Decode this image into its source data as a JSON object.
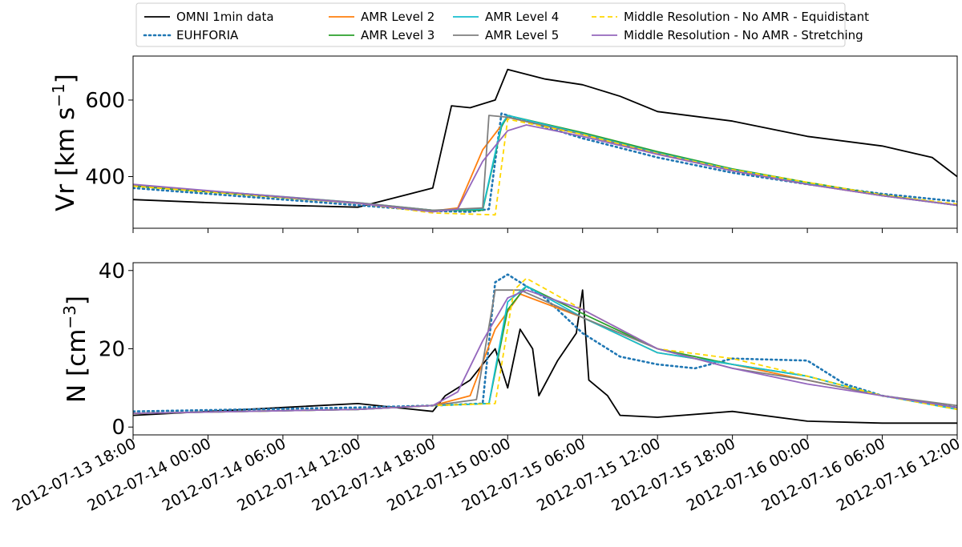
{
  "chart_data": {
    "type": "line",
    "legend": {
      "placement": "top-center",
      "entries": [
        {
          "name": "OMNI 1min data",
          "color": "#000000",
          "style": "solid"
        },
        {
          "name": "EUHFORIA",
          "color": "#1f77b4",
          "style": "dotted"
        },
        {
          "name": "AMR Level 2",
          "color": "#ff7f0e",
          "style": "solid"
        },
        {
          "name": "AMR Level 3",
          "color": "#2ca02c",
          "style": "solid"
        },
        {
          "name": "AMR Level 4",
          "color": "#17becf",
          "style": "solid"
        },
        {
          "name": "AMR Level 5",
          "color": "#7f7f7f",
          "style": "solid"
        },
        {
          "name": "Middle Resolution - No AMR - Equidistant",
          "color": "#ffd700",
          "style": "dashed"
        },
        {
          "name": "Middle Resolution - No AMR - Stretching",
          "color": "#9467bd",
          "style": "solid"
        }
      ]
    },
    "x_axis": {
      "type": "time",
      "range": [
        "2012-07-13 18:00",
        "2012-07-16 12:00"
      ],
      "tick_labels": [
        "2012-07-13 18:00",
        "2012-07-14 00:00",
        "2012-07-14 06:00",
        "2012-07-14 12:00",
        "2012-07-14 18:00",
        "2012-07-15 00:00",
        "2012-07-15 06:00",
        "2012-07-15 12:00",
        "2012-07-15 18:00",
        "2012-07-16 00:00",
        "2012-07-16 06:00",
        "2012-07-16 12:00"
      ]
    },
    "panels": [
      {
        "ylabel_main": "Vr [km s",
        "ylabel_sup": "−1",
        "ylabel_end": "]",
        "ylim": [
          265,
          715
        ],
        "yticks": [
          400,
          600
        ],
        "grid": false,
        "series": [
          {
            "name": "OMNI 1min data",
            "x": [
              "2012-07-13 18:00",
              "2012-07-14 00:00",
              "2012-07-14 06:00",
              "2012-07-14 12:00",
              "2012-07-14 15:00",
              "2012-07-14 18:00",
              "2012-07-14 19:30",
              "2012-07-14 21:00",
              "2012-07-14 23:00",
              "2012-07-15 00:00",
              "2012-07-15 03:00",
              "2012-07-15 06:00",
              "2012-07-15 09:00",
              "2012-07-15 12:00",
              "2012-07-15 18:00",
              "2012-07-16 00:00",
              "2012-07-16 06:00",
              "2012-07-16 10:00",
              "2012-07-16 12:00"
            ],
            "y": [
              340,
              332,
              325,
              320,
              345,
              370,
              585,
              580,
              600,
              680,
              655,
              640,
              610,
              570,
              545,
              505,
              480,
              450,
              400
            ]
          },
          {
            "name": "EUHFORIA",
            "x": [
              "2012-07-13 18:00",
              "2012-07-14 12:00",
              "2012-07-14 18:00",
              "2012-07-14 21:00",
              "2012-07-14 22:30",
              "2012-07-14 23:30",
              "2012-07-15 06:00",
              "2012-07-15 12:00",
              "2012-07-15 18:00",
              "2012-07-16 00:00",
              "2012-07-16 06:00",
              "2012-07-16 12:00"
            ],
            "y": [
              370,
              325,
              310,
              308,
              315,
              565,
              500,
              450,
              410,
              380,
              355,
              335
            ]
          },
          {
            "name": "AMR Level 2",
            "x": [
              "2012-07-13 18:00",
              "2012-07-14 12:00",
              "2012-07-14 18:00",
              "2012-07-14 20:00",
              "2012-07-14 22:00",
              "2012-07-15 00:00",
              "2012-07-15 06:00",
              "2012-07-15 12:00",
              "2012-07-15 18:00",
              "2012-07-16 00:00",
              "2012-07-16 06:00",
              "2012-07-16 12:00"
            ],
            "y": [
              375,
              330,
              310,
              318,
              470,
              555,
              510,
              460,
              415,
              380,
              350,
              325
            ]
          },
          {
            "name": "AMR Level 3",
            "x": [
              "2012-07-13 18:00",
              "2012-07-14 12:00",
              "2012-07-14 18:00",
              "2012-07-14 22:00",
              "2012-07-14 23:30",
              "2012-07-15 00:00",
              "2012-07-15 06:00",
              "2012-07-15 12:00",
              "2012-07-15 18:00",
              "2012-07-16 00:00",
              "2012-07-16 06:00",
              "2012-07-16 12:00"
            ],
            "y": [
              375,
              330,
              312,
              312,
              530,
              560,
              515,
              465,
              420,
              385,
              352,
              325
            ]
          },
          {
            "name": "AMR Level 4",
            "x": [
              "2012-07-13 18:00",
              "2012-07-14 12:00",
              "2012-07-14 18:00",
              "2012-07-14 22:00",
              "2012-07-14 23:30",
              "2012-07-15 00:00",
              "2012-07-15 06:00",
              "2012-07-15 12:00",
              "2012-07-15 18:00",
              "2012-07-16 00:00",
              "2012-07-16 06:00",
              "2012-07-16 12:00"
            ],
            "y": [
              378,
              332,
              312,
              315,
              535,
              560,
              512,
              462,
              418,
              382,
              350,
              325
            ]
          },
          {
            "name": "AMR Level 5",
            "x": [
              "2012-07-13 18:00",
              "2012-07-14 12:00",
              "2012-07-14 18:00",
              "2012-07-14 22:00",
              "2012-07-14 22:30",
              "2012-07-15 00:00",
              "2012-07-15 06:00",
              "2012-07-15 12:00",
              "2012-07-15 18:00",
              "2012-07-16 00:00",
              "2012-07-16 06:00",
              "2012-07-16 12:00"
            ],
            "y": [
              378,
              332,
              312,
              318,
              560,
              555,
              510,
              460,
              416,
              380,
              350,
              325
            ]
          },
          {
            "name": "Middle Resolution - No AMR - Equidistant",
            "x": [
              "2012-07-13 18:00",
              "2012-07-14 12:00",
              "2012-07-14 18:00",
              "2012-07-14 23:00",
              "2012-07-15 00:00",
              "2012-07-15 06:00",
              "2012-07-15 12:00",
              "2012-07-15 18:00",
              "2012-07-16 00:00",
              "2012-07-16 06:00",
              "2012-07-16 12:00"
            ],
            "y": [
              375,
              330,
              305,
              300,
              550,
              510,
              460,
              418,
              385,
              352,
              328
            ]
          },
          {
            "name": "Middle Resolution - No AMR - Stretching",
            "x": [
              "2012-07-13 18:00",
              "2012-07-14 12:00",
              "2012-07-14 18:00",
              "2012-07-14 20:00",
              "2012-07-14 22:00",
              "2012-07-15 00:00",
              "2012-07-15 01:30",
              "2012-07-15 06:00",
              "2012-07-15 12:00",
              "2012-07-15 18:00",
              "2012-07-16 00:00",
              "2012-07-16 06:00",
              "2012-07-16 12:00"
            ],
            "y": [
              380,
              330,
              308,
              315,
              440,
              520,
              535,
              505,
              458,
              415,
              380,
              350,
              325
            ]
          }
        ]
      },
      {
        "ylabel_main": "N [cm",
        "ylabel_sup": "−3",
        "ylabel_end": "]",
        "ylim": [
          -2,
          42
        ],
        "yticks": [
          0,
          20,
          40
        ],
        "grid": false,
        "series": [
          {
            "name": "OMNI 1min data",
            "x": [
              "2012-07-13 18:00",
              "2012-07-14 00:00",
              "2012-07-14 06:00",
              "2012-07-14 12:00",
              "2012-07-14 15:00",
              "2012-07-14 18:00",
              "2012-07-14 19:00",
              "2012-07-14 21:00",
              "2012-07-14 23:00",
              "2012-07-15 00:00",
              "2012-07-15 01:00",
              "2012-07-15 02:00",
              "2012-07-15 02:30",
              "2012-07-15 04:00",
              "2012-07-15 05:30",
              "2012-07-15 06:00",
              "2012-07-15 06:30",
              "2012-07-15 08:00",
              "2012-07-15 09:00",
              "2012-07-15 12:00",
              "2012-07-15 18:00",
              "2012-07-16 00:00",
              "2012-07-16 06:00",
              "2012-07-16 12:00"
            ],
            "y": [
              3,
              4,
              5,
              6,
              5,
              4,
              8,
              12,
              20,
              10,
              25,
              20,
              8,
              17,
              24,
              35,
              12,
              8,
              3,
              2.5,
              4,
              1.5,
              1,
              1
            ]
          },
          {
            "name": "EUHFORIA",
            "x": [
              "2012-07-13 18:00",
              "2012-07-14 12:00",
              "2012-07-14 18:00",
              "2012-07-14 22:00",
              "2012-07-14 23:00",
              "2012-07-15 00:00",
              "2012-07-15 03:00",
              "2012-07-15 06:00",
              "2012-07-15 09:00",
              "2012-07-15 12:00",
              "2012-07-15 15:00",
              "2012-07-15 18:00",
              "2012-07-16 00:00",
              "2012-07-16 03:00",
              "2012-07-16 06:00",
              "2012-07-16 12:00"
            ],
            "y": [
              4,
              5,
              5.5,
              6,
              37,
              39,
              33,
              24,
              18,
              16,
              15,
              17.5,
              17,
              11,
              8,
              5
            ]
          },
          {
            "name": "AMR Level 2",
            "x": [
              "2012-07-13 18:00",
              "2012-07-14 12:00",
              "2012-07-14 18:00",
              "2012-07-14 21:00",
              "2012-07-14 23:00",
              "2012-07-15 01:00",
              "2012-07-15 06:00",
              "2012-07-15 12:00",
              "2012-07-15 18:00",
              "2012-07-16 00:00",
              "2012-07-16 06:00",
              "2012-07-16 12:00"
            ],
            "y": [
              3.5,
              4.5,
              5.5,
              8,
              25,
              34,
              28,
              19,
              16,
              12,
              8,
              5
            ]
          },
          {
            "name": "AMR Level 3",
            "x": [
              "2012-07-13 18:00",
              "2012-07-14 12:00",
              "2012-07-14 18:00",
              "2012-07-14 22:30",
              "2012-07-15 00:00",
              "2012-07-15 01:30",
              "2012-07-15 06:00",
              "2012-07-15 12:00",
              "2012-07-15 18:00",
              "2012-07-16 00:00",
              "2012-07-16 06:00",
              "2012-07-16 12:00"
            ],
            "y": [
              3.5,
              4.5,
              5.5,
              6,
              30,
              36,
              29,
              20,
              16,
              13,
              8,
              5
            ]
          },
          {
            "name": "AMR Level 4",
            "x": [
              "2012-07-13 18:00",
              "2012-07-14 12:00",
              "2012-07-14 18:00",
              "2012-07-14 22:30",
              "2012-07-15 00:00",
              "2012-07-15 01:30",
              "2012-07-15 06:00",
              "2012-07-15 12:00",
              "2012-07-15 18:00",
              "2012-07-16 00:00",
              "2012-07-16 06:00",
              "2012-07-16 12:00"
            ],
            "y": [
              3.5,
              4.5,
              5.5,
              6,
              32,
              36,
              28,
              19,
              16,
              13,
              8,
              4.5
            ]
          },
          {
            "name": "AMR Level 5",
            "x": [
              "2012-07-13 18:00",
              "2012-07-14 12:00",
              "2012-07-14 18:00",
              "2012-07-14 21:30",
              "2012-07-14 23:00",
              "2012-07-15 01:00",
              "2012-07-15 06:00",
              "2012-07-15 12:00",
              "2012-07-15 18:00",
              "2012-07-16 00:00",
              "2012-07-16 06:00",
              "2012-07-16 12:00"
            ],
            "y": [
              3.5,
              4.5,
              5.5,
              7,
              35,
              35,
              28,
              20,
              15,
              12,
              8,
              5.5
            ]
          },
          {
            "name": "Middle Resolution - No AMR - Equidistant",
            "x": [
              "2012-07-13 18:00",
              "2012-07-14 12:00",
              "2012-07-14 18:00",
              "2012-07-14 23:00",
              "2012-07-15 00:30",
              "2012-07-15 01:30",
              "2012-07-15 06:00",
              "2012-07-15 12:00",
              "2012-07-15 18:00",
              "2012-07-16 00:00",
              "2012-07-16 06:00",
              "2012-07-16 12:00"
            ],
            "y": [
              3.5,
              4.5,
              5.5,
              6,
              35,
              38,
              30,
              20,
              17.5,
              13,
              8,
              4.5
            ]
          },
          {
            "name": "Middle Resolution - No AMR - Stretching",
            "x": [
              "2012-07-13 18:00",
              "2012-07-14 12:00",
              "2012-07-14 18:00",
              "2012-07-14 20:00",
              "2012-07-14 22:00",
              "2012-07-15 00:00",
              "2012-07-15 01:30",
              "2012-07-15 06:00",
              "2012-07-15 12:00",
              "2012-07-15 18:00",
              "2012-07-16 00:00",
              "2012-07-16 06:00",
              "2012-07-16 12:00"
            ],
            "y": [
              3.5,
              4.5,
              5.5,
              9,
              22,
              33,
              35,
              30,
              20,
              15,
              11,
              8,
              5
            ]
          }
        ]
      }
    ]
  }
}
